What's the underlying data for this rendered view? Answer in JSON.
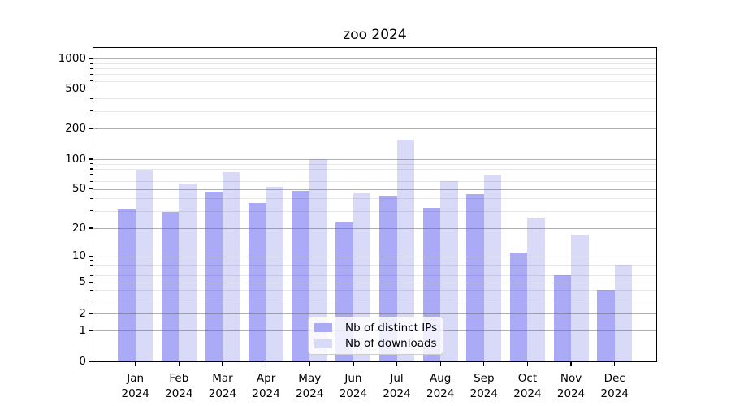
{
  "chart_data": {
    "type": "bar",
    "title": "zoo 2024",
    "categories": [
      "Jan 2024",
      "Feb 2024",
      "Mar 2024",
      "Apr 2024",
      "May 2024",
      "Jun 2024",
      "Jul 2024",
      "Aug 2024",
      "Sep 2024",
      "Oct 2024",
      "Nov 2024",
      "Dec 2024"
    ],
    "series": [
      {
        "name": "Nb of distinct IPs",
        "color": "#aaaaf6",
        "values": [
          31,
          29,
          47,
          36,
          48,
          23,
          43,
          32,
          44,
          11,
          6,
          4
        ]
      },
      {
        "name": "Nb of downloads",
        "color": "#d9d9f8",
        "values": [
          78,
          57,
          74,
          53,
          100,
          45,
          155,
          60,
          70,
          25,
          17,
          8
        ]
      }
    ],
    "xlabel": "",
    "ylabel": "",
    "yscale": "symlog",
    "ylim": [
      0,
      1280
    ],
    "y_major_ticks": [
      0,
      1,
      2,
      5,
      10,
      20,
      50,
      100,
      200,
      500,
      1000
    ],
    "y_minor_ticks": [
      3,
      4,
      6,
      7,
      8,
      9,
      30,
      40,
      60,
      70,
      80,
      90,
      300,
      400,
      600,
      700,
      800,
      900
    ],
    "grid": true,
    "legend_position": "lower center"
  },
  "colors": {
    "spine": "#000000",
    "major_grid": "#b0b0b0",
    "minor_grid": "#e8e8e8",
    "legend_bg": "rgba(255,255,255,0.8)",
    "legend_border": "#cccccc",
    "text": "#000000"
  }
}
